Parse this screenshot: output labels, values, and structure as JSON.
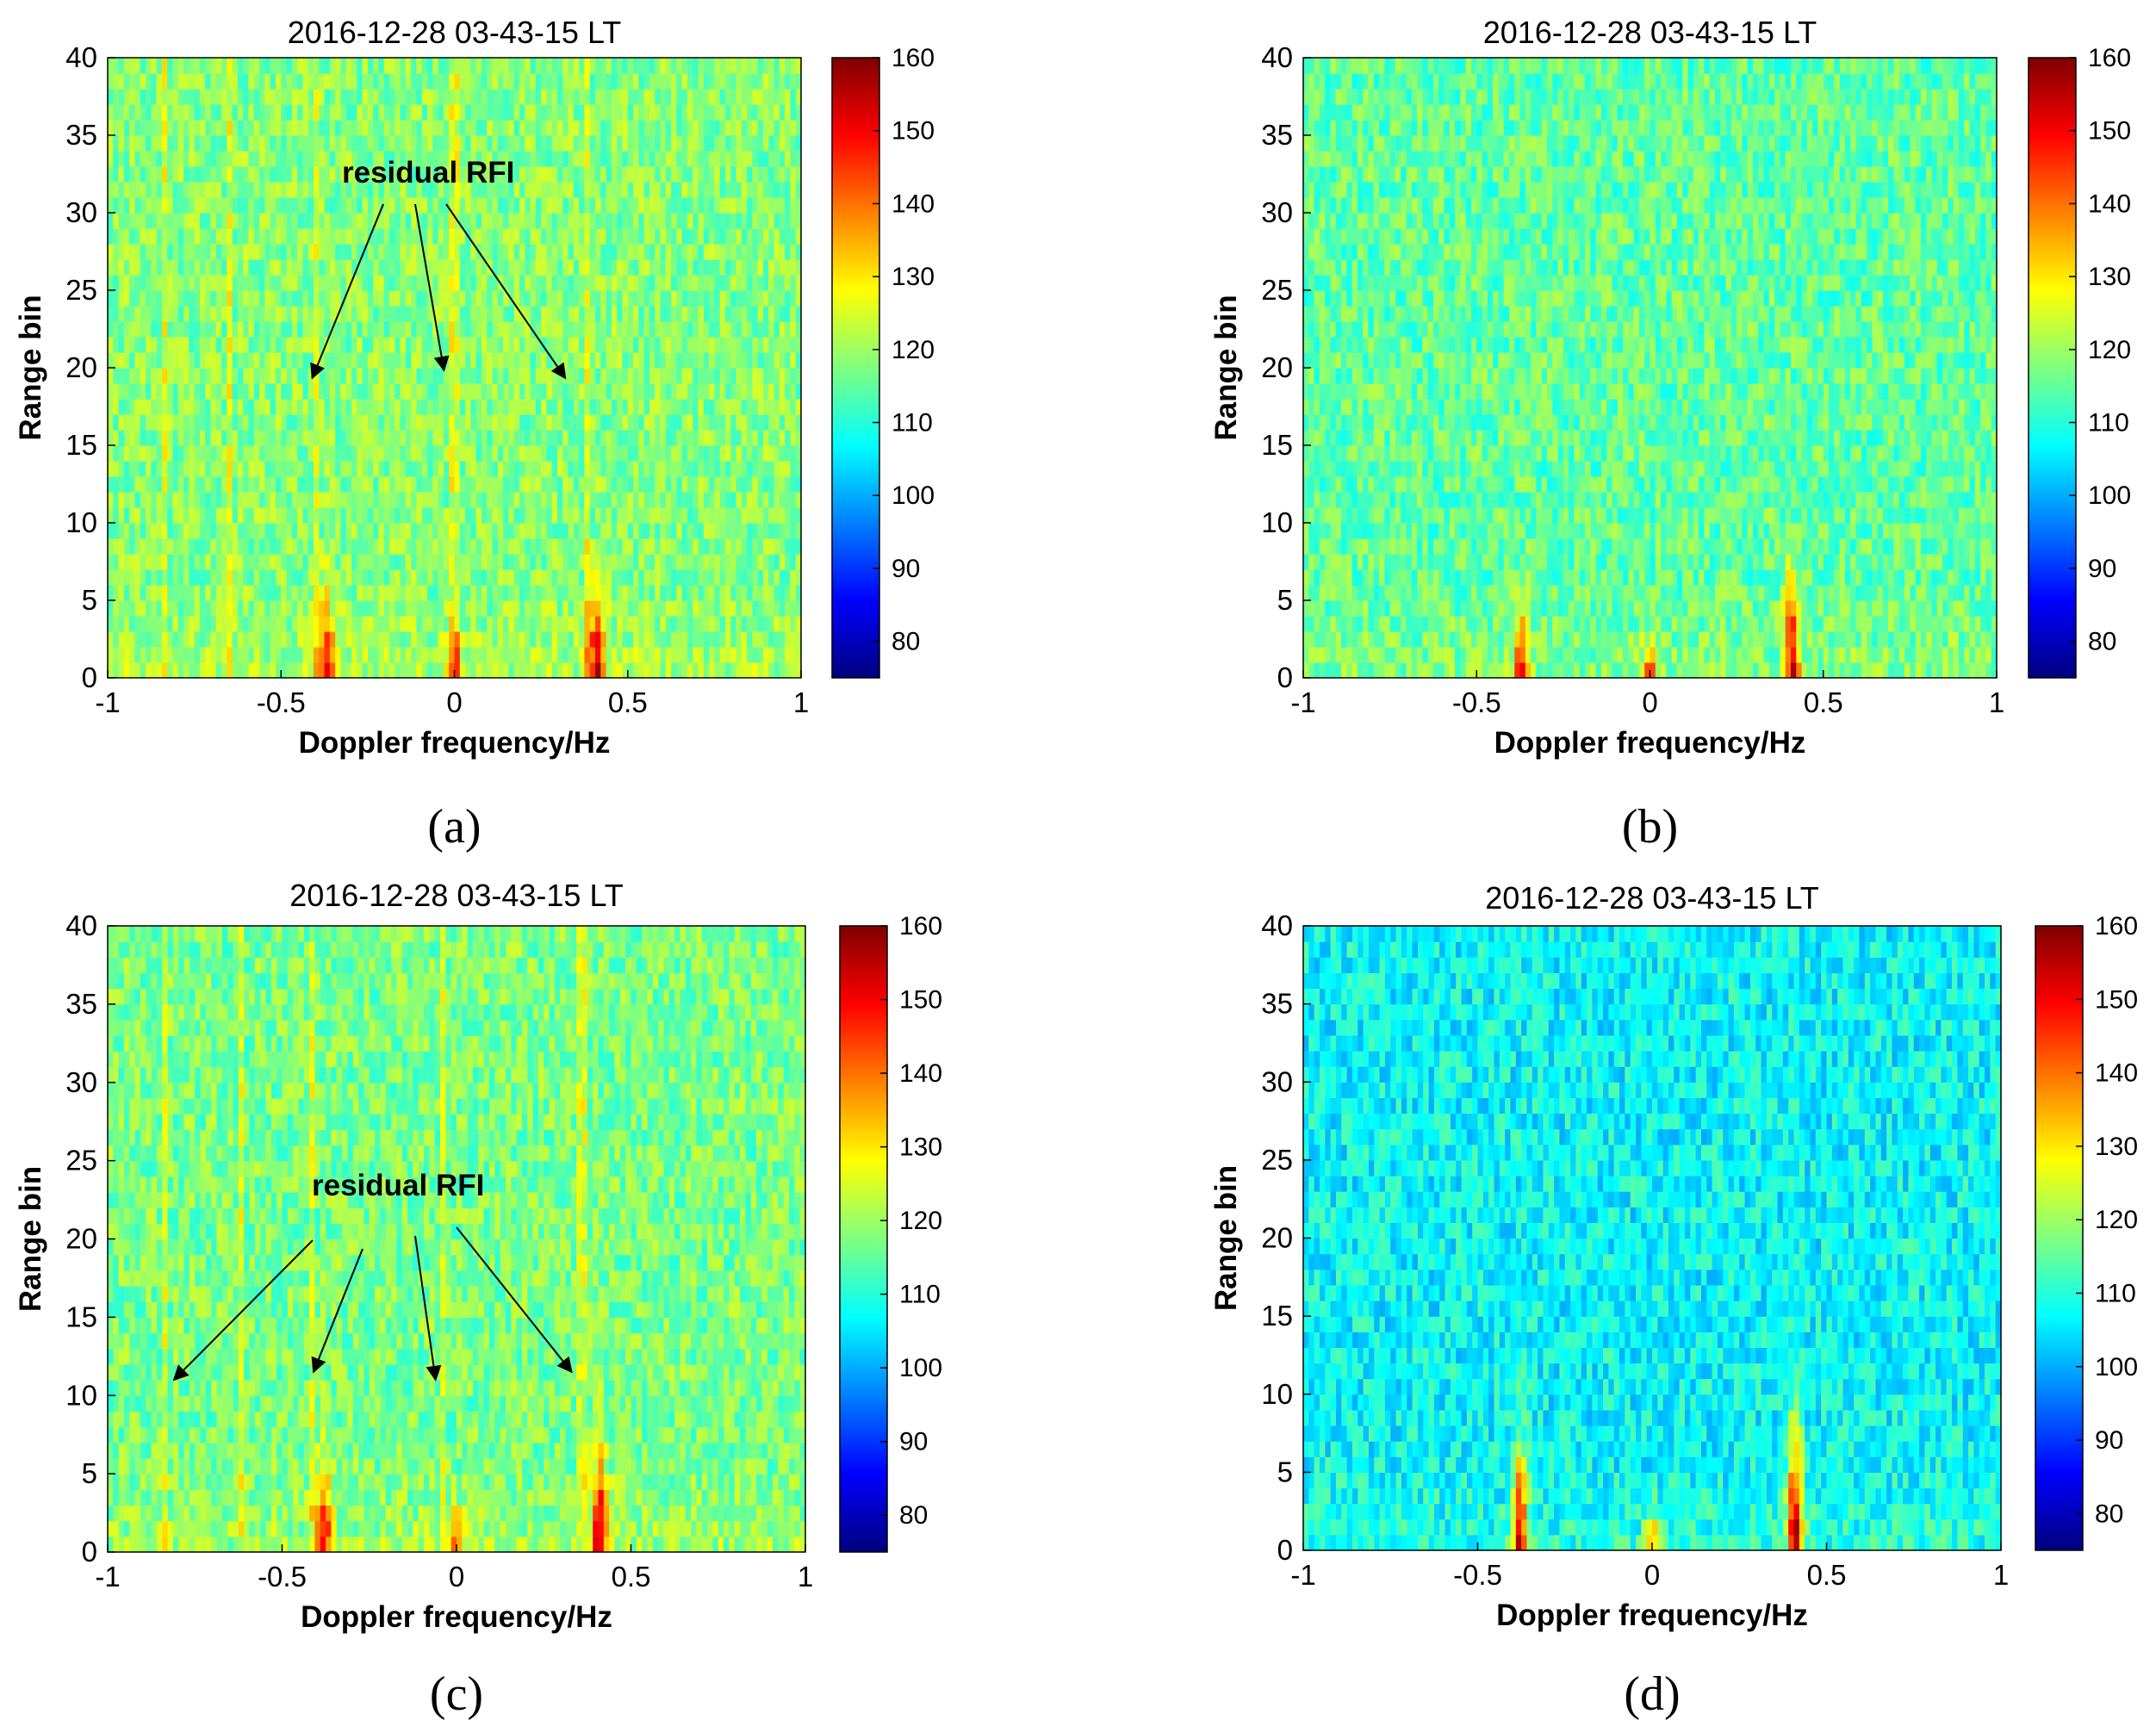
{
  "chart_data": [
    {
      "panel": "a",
      "type": "heatmap",
      "title": "2016-12-28 03-43-15 LT",
      "xlabel": "Doppler frequency/Hz",
      "ylabel": "Range bin",
      "xlim": [
        -1,
        1
      ],
      "ylim": [
        0,
        40
      ],
      "xticks": [
        "-1",
        "-0.5",
        "0",
        "0.5",
        "1"
      ],
      "yticks": [
        "0",
        "5",
        "10",
        "15",
        "20",
        "25",
        "30",
        "35",
        "40"
      ],
      "colorbar": {
        "range": [
          75,
          160
        ],
        "ticks": [
          "80",
          "90",
          "100",
          "110",
          "120",
          "130",
          "140",
          "150",
          "160"
        ],
        "colormap": "jet"
      },
      "background_level": 118,
      "bragg_peaks": [
        {
          "doppler_hz": -0.37,
          "peak_value": 150,
          "extent_range_bin": 6
        },
        {
          "doppler_hz": 0.0,
          "peak_value": 143,
          "extent_range_bin": 3
        },
        {
          "doppler_hz": 0.41,
          "peak_value": 152,
          "extent_range_bin": 7
        }
      ],
      "rfi_lines_hz": [
        -0.84,
        -0.65,
        -0.4,
        0.0,
        0.38
      ],
      "annotation": {
        "text": "residual RFI",
        "targets_hz": [
          -0.41,
          -0.03,
          0.32
        ]
      }
    },
    {
      "panel": "b",
      "type": "heatmap",
      "title": "2016-12-28 03-43-15 LT",
      "xlabel": "Doppler frequency/Hz",
      "ylabel": "Range bin",
      "xlim": [
        -1,
        1
      ],
      "ylim": [
        0,
        40
      ],
      "xticks": [
        "-1",
        "-0.5",
        "0",
        "0.5",
        "1"
      ],
      "yticks": [
        "0",
        "5",
        "10",
        "15",
        "20",
        "25",
        "30",
        "35",
        "40"
      ],
      "colorbar": {
        "range": [
          75,
          160
        ],
        "ticks": [
          "80",
          "90",
          "100",
          "110",
          "120",
          "130",
          "140",
          "150",
          "160"
        ],
        "colormap": "jet"
      },
      "background_level": 115,
      "bragg_peaks": [
        {
          "doppler_hz": -0.37,
          "peak_value": 148,
          "extent_range_bin": 6
        },
        {
          "doppler_hz": 0.0,
          "peak_value": 140,
          "extent_range_bin": 3
        },
        {
          "doppler_hz": 0.41,
          "peak_value": 150,
          "extent_range_bin": 8
        }
      ],
      "rfi_lines_hz": []
    },
    {
      "panel": "c",
      "type": "heatmap",
      "title": "2016-12-28 03-43-15 LT",
      "xlabel": "Doppler frequency/Hz",
      "ylabel": "Range bin",
      "xlim": [
        -1,
        1
      ],
      "ylim": [
        0,
        40
      ],
      "xticks": [
        "-1",
        "-0.5",
        "0",
        "0.5",
        "1"
      ],
      "yticks": [
        "0",
        "5",
        "10",
        "15",
        "20",
        "25",
        "30",
        "35",
        "40"
      ],
      "colorbar": {
        "range": [
          75,
          160
        ],
        "ticks": [
          "80",
          "90",
          "100",
          "110",
          "120",
          "130",
          "140",
          "150",
          "160"
        ],
        "colormap": "jet"
      },
      "background_level": 117,
      "bragg_peaks": [
        {
          "doppler_hz": -0.38,
          "peak_value": 150,
          "extent_range_bin": 7
        },
        {
          "doppler_hz": 0.0,
          "peak_value": 143,
          "extent_range_bin": 3
        },
        {
          "doppler_hz": 0.41,
          "peak_value": 152,
          "extent_range_bin": 8
        }
      ],
      "rfi_lines_hz": [
        -0.84,
        -0.62,
        -0.41,
        -0.04,
        0.36
      ],
      "annotation": {
        "text": "residual RFI",
        "targets_hz": [
          -0.81,
          -0.41,
          -0.06,
          0.33
        ]
      }
    },
    {
      "panel": "d",
      "type": "heatmap",
      "title": "2016-12-28 03-43-15 LT",
      "xlabel": "Doppler frequency/Hz",
      "ylabel": "Range bin",
      "xlim": [
        -1,
        1
      ],
      "ylim": [
        0,
        40
      ],
      "xticks": [
        "-1",
        "-0.5",
        "0",
        "0.5",
        "1"
      ],
      "yticks": [
        "0",
        "5",
        "10",
        "15",
        "20",
        "25",
        "30",
        "35",
        "40"
      ],
      "colorbar": {
        "range": [
          75,
          160
        ],
        "ticks": [
          "80",
          "90",
          "100",
          "110",
          "120",
          "130",
          "140",
          "150",
          "160"
        ],
        "colormap": "jet"
      },
      "background_level": 107,
      "bragg_peaks": [
        {
          "doppler_hz": -0.38,
          "peak_value": 152,
          "extent_range_bin": 8
        },
        {
          "doppler_hz": 0.0,
          "peak_value": 138,
          "extent_range_bin": 3
        },
        {
          "doppler_hz": 0.41,
          "peak_value": 155,
          "extent_range_bin": 10
        }
      ],
      "rfi_lines_hz": []
    }
  ],
  "panel_labels": [
    "(a)",
    "(b)",
    "(c)",
    "(d)"
  ]
}
